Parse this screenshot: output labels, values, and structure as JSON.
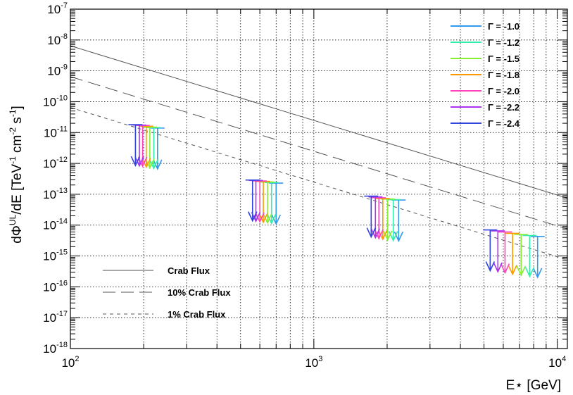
{
  "chart_data": {
    "type": "scatter",
    "title": "",
    "xlabel": "E⋆ [GeV]",
    "ylabel": "dΦUL/dE [TeV-1 cm-2 s-1]",
    "ylabel_parts": {
      "pre": "dΦ",
      "sup1": "UL",
      "mid": "/dE [TeV",
      "sup2": "-1",
      "mid2": " cm",
      "sup3": "-2",
      "mid3": " s",
      "sup4": "-1",
      "post": "]"
    },
    "xlabel_text": "E⋆ [GeV]",
    "xscale": "log",
    "yscale": "log",
    "xlim": [
      100,
      11000
    ],
    "ylim": [
      1e-18,
      1e-07
    ],
    "grid": true,
    "x_tick_labels": [
      {
        "value": 100,
        "base": "10",
        "exp": "2"
      },
      {
        "value": 1000,
        "base": "10",
        "exp": "3"
      },
      {
        "value": 10000,
        "base": "10",
        "exp": "4"
      }
    ],
    "y_tick_labels": [
      {
        "value": 1e-07,
        "base": "10",
        "exp": "-7"
      },
      {
        "value": 1e-08,
        "base": "10",
        "exp": "-8"
      },
      {
        "value": 1e-09,
        "base": "10",
        "exp": "-9"
      },
      {
        "value": 1e-10,
        "base": "10",
        "exp": "-10"
      },
      {
        "value": 1e-11,
        "base": "10",
        "exp": "-11"
      },
      {
        "value": 1e-12,
        "base": "10",
        "exp": "-12"
      },
      {
        "value": 1e-13,
        "base": "10",
        "exp": "-13"
      },
      {
        "value": 1e-14,
        "base": "10",
        "exp": "-14"
      },
      {
        "value": 1e-15,
        "base": "10",
        "exp": "-15"
      },
      {
        "value": 1e-16,
        "base": "10",
        "exp": "-16"
      },
      {
        "value": 1e-17,
        "base": "10",
        "exp": "-17"
      },
      {
        "value": 1e-18,
        "base": "10",
        "exp": "-18"
      }
    ],
    "reference_lines": [
      {
        "name": "Crab Flux",
        "style": "solid",
        "x": [
          100,
          11000
        ],
        "y": [
          6.5e-09,
          7.5e-14
        ]
      },
      {
        "name": "10% Crab Flux",
        "style": "long-dash",
        "x": [
          100,
          11000
        ],
        "y": [
          6.5e-10,
          7.5e-15
        ]
      },
      {
        "name": "1% Crab Flux",
        "style": "short-dash",
        "x": [
          100,
          11000
        ],
        "y": [
          6.5e-11,
          7.5e-16
        ]
      }
    ],
    "series": [
      {
        "name": "Γ = -1.0",
        "color": "#3399ee",
        "points": [
          {
            "x": 228,
            "y": 1.4e-11
          },
          {
            "x": 700,
            "y": 2.3e-13
          },
          {
            "x": 2230,
            "y": 6.5e-14
          },
          {
            "x": 8300,
            "y": 4.3e-15
          }
        ]
      },
      {
        "name": "Γ = -1.2",
        "color": "#33eeaa",
        "points": [
          {
            "x": 220,
            "y": 1.45e-11
          },
          {
            "x": 670,
            "y": 2.4e-13
          },
          {
            "x": 2120,
            "y": 6.7e-14
          },
          {
            "x": 7700,
            "y": 4.6e-15
          }
        ]
      },
      {
        "name": "Γ = -1.5",
        "color": "#88ee33",
        "points": [
          {
            "x": 212,
            "y": 1.5e-11
          },
          {
            "x": 645,
            "y": 2.5e-13
          },
          {
            "x": 2010,
            "y": 7e-14
          },
          {
            "x": 7100,
            "y": 5e-15
          }
        ]
      },
      {
        "name": "Γ = -1.8",
        "color": "#ff9900",
        "points": [
          {
            "x": 205,
            "y": 1.6e-11
          },
          {
            "x": 620,
            "y": 2.6e-13
          },
          {
            "x": 1920,
            "y": 7.3e-14
          },
          {
            "x": 6550,
            "y": 5.4e-15
          }
        ]
      },
      {
        "name": "Γ = -2.0",
        "color": "#ff44bb",
        "points": [
          {
            "x": 198,
            "y": 1.7e-11
          },
          {
            "x": 600,
            "y": 2.7e-13
          },
          {
            "x": 1850,
            "y": 7.7e-14
          },
          {
            "x": 6100,
            "y": 6e-15
          }
        ]
      },
      {
        "name": "Γ = -2.2",
        "color": "#aa33ee",
        "points": [
          {
            "x": 192,
            "y": 1.75e-11
          },
          {
            "x": 578,
            "y": 2.8e-13
          },
          {
            "x": 1790,
            "y": 8.2e-14
          },
          {
            "x": 5700,
            "y": 6.5e-15
          }
        ]
      },
      {
        "name": "Γ = -2.4",
        "color": "#3344dd",
        "points": [
          {
            "x": 185,
            "y": 1.8e-11
          },
          {
            "x": 560,
            "y": 2.9e-13
          },
          {
            "x": 1720,
            "y": 8.7e-14
          },
          {
            "x": 5300,
            "y": 7e-15
          }
        ]
      }
    ],
    "series_legend_position": "top-right",
    "reference_legend_position": "bottom-left"
  }
}
